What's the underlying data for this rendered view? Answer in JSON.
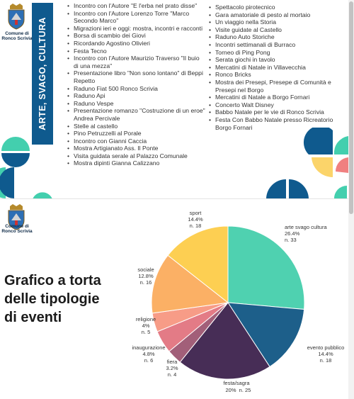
{
  "slide1": {
    "crest_caption": [
      "Comune di",
      "Ronco Scrivia"
    ],
    "section_title": "ARTE, SVAGO, CULTURA",
    "events_left": [
      "Incontro con l'Autore \"E l'erba nel prato disse\"",
      "Incontro con l'Autore Lorenzo Torre \"Marco Secondo Marco\"",
      "Migrazioni ieri e oggi: mostra, incontri e racconti",
      "Borsa di scambio dei Giovi",
      "Ricordando Agostino Olivieri",
      "Festa Tecno",
      "Incontro con l'Autore Maurizio Traverso \"Il buio di una mezza\"",
      "Presentazione libro \"Non sono lontano\" di Beppi Repetto",
      "Raduno Fiat 500 Ronco Scrivia",
      "Raduno Api",
      "Raduno Vespe",
      "Presentazione romanzo \"Costruzione di un eroe\" Andrea Percivale",
      "Stelle al castello",
      "Pino Petruzzelli al Porale",
      "Incontro con Gianni Caccia",
      "Mostra Artigianato Ass. Il Ponte",
      "Visita guidata serale al Palazzo Comunale",
      "Mostra dipinti Gianna Calizzano"
    ],
    "events_right": [
      "Spettacolo pirotecnico",
      "Gara amatoriale di pesto al mortaio",
      "Un viaggio nella Storia",
      "Visite guidate al Castello",
      "Raduno Auto Storiche",
      "Incontri settimanali di Burraco",
      "Torneo di Ping Pong",
      "Serata giochi in tavolo",
      "Mercatini di Natale in Villavecchia",
      "Ronco Bricks",
      "Mostra dei Presepi, Presepe di Comunità e Presepi nel Borgo",
      "Mercatini di Natale a Borgo Fornari",
      "Concerto Walt Disney",
      "Babbo Natale per le vie di Ronco Scrivia",
      "Festa Con Babbo Natale presso Ricreatorio Borgo Fornari"
    ],
    "colors": {
      "navy": "#0f5a8e",
      "teal": "#43cfae",
      "yellow": "#fbd46a",
      "coral": "#f08080",
      "salmon": "#f4a79b"
    }
  },
  "slide2": {
    "crest_caption": [
      "Comune di",
      "Ronco Scrivia"
    ],
    "title_lines": [
      "Grafico a torta",
      "delle tipologie",
      "di eventi"
    ]
  },
  "chart_data": {
    "type": "pie",
    "slices": [
      {
        "name": "arte svago cultura",
        "percent": "26.4%",
        "count": "n. 33",
        "value": 33,
        "color": "#4fd1b0"
      },
      {
        "name": "evento pubblico",
        "percent": "14.4%",
        "count": "n. 18",
        "value": 18,
        "color": "#1d5f8a"
      },
      {
        "name": "festa/sagra",
        "percent": "20%",
        "count": "n. 25",
        "value": 25,
        "color": "#472d56"
      },
      {
        "name": "fiera",
        "percent": "3.2%",
        "count": "n. 4",
        "value": 4,
        "color": "#a25f79"
      },
      {
        "name": "inaugurazione",
        "percent": "4.8%",
        "count": "n. 6",
        "value": 6,
        "color": "#e37b86"
      },
      {
        "name": "religione",
        "percent": "4%",
        "count": "n. 5",
        "value": 5,
        "color": "#f79c87"
      },
      {
        "name": "sociale",
        "percent": "12.8%",
        "count": "n. 16",
        "value": 16,
        "color": "#fbb065"
      },
      {
        "name": "sport",
        "percent": "14.4%",
        "count": "n. 18",
        "value": 18,
        "color": "#fdcf52"
      }
    ]
  }
}
